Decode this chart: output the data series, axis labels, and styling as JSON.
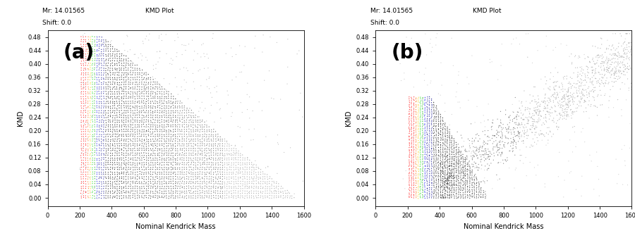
{
  "header_mr": "Mr: 14.01565",
  "header_kmd": "KMD Plot",
  "header_shift": "Shift: 0.0",
  "xlabel": "Nominal Kendrick Mass",
  "ylabel": "KMD",
  "label_a": "(a)",
  "label_b": "(b)",
  "xlim": [
    0,
    1600
  ],
  "ylim": [
    -0.025,
    0.5
  ],
  "xticks": [
    0,
    200,
    400,
    600,
    800,
    1000,
    1200,
    1400,
    1600
  ],
  "yticks": [
    0.0,
    0.04,
    0.08,
    0.12,
    0.16,
    0.2,
    0.24,
    0.28,
    0.32,
    0.36,
    0.4,
    0.44,
    0.48
  ],
  "bg_color": "#ffffff",
  "seed_a": 42,
  "seed_b": 99,
  "header_fontsize": 6.5,
  "axis_label_fontsize": 7,
  "tick_fontsize": 6,
  "panel_label_fontsize": 20
}
